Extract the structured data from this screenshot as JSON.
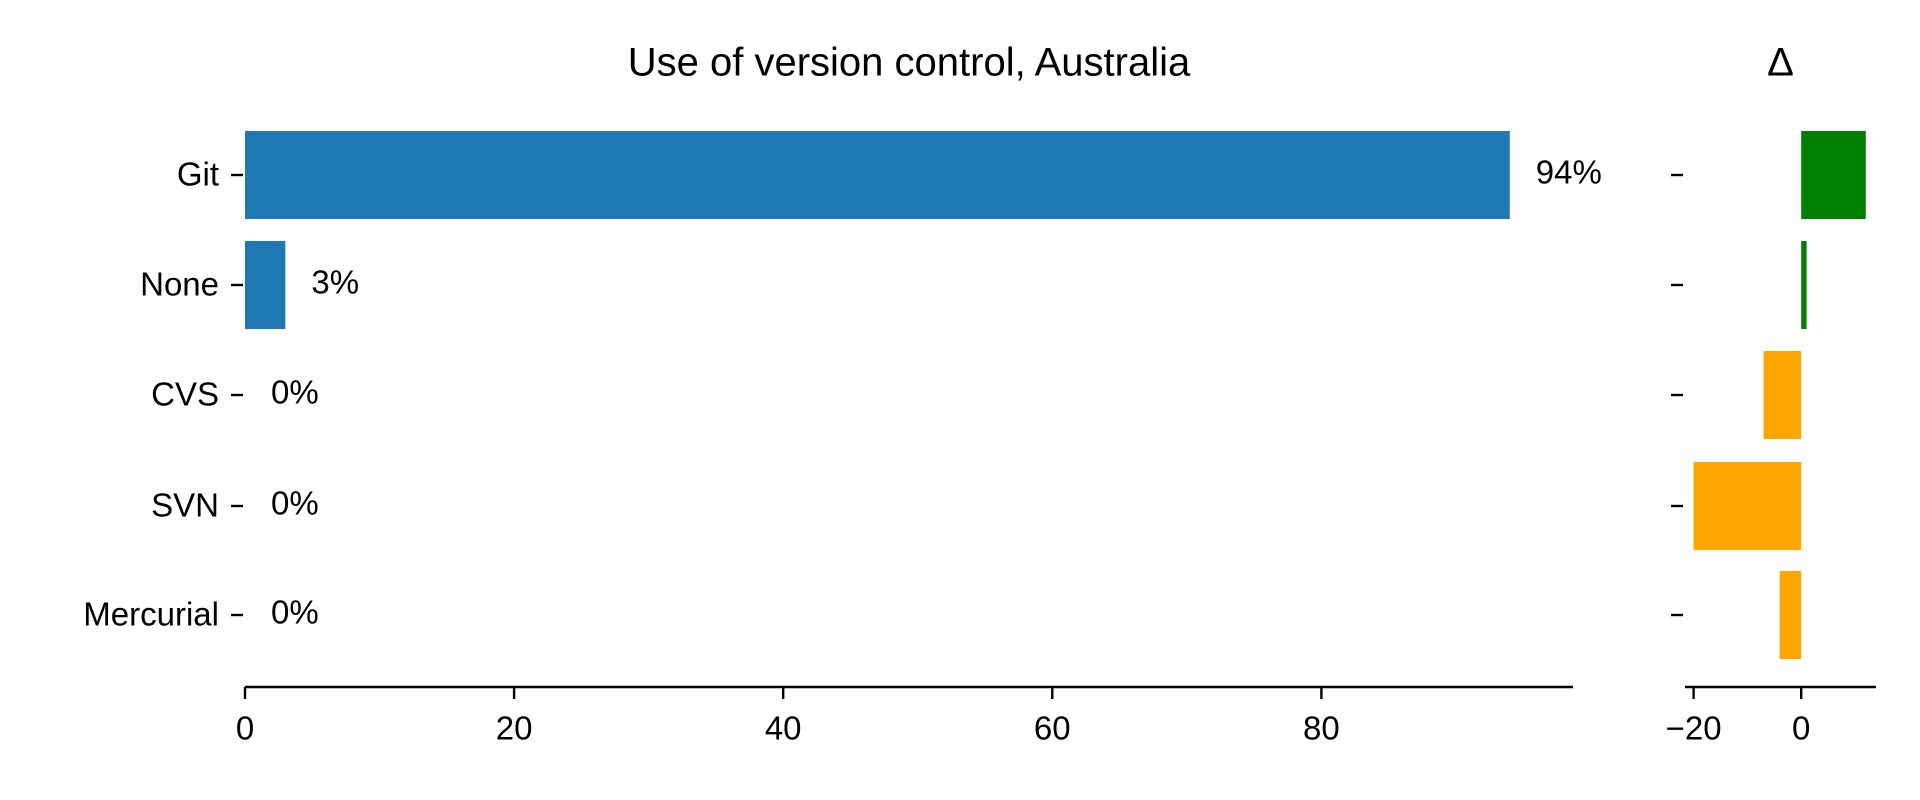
{
  "chart_data": [
    {
      "type": "barh",
      "title": "Use of version control, Australia",
      "categories": [
        "Git",
        "None",
        "CVS",
        "SVN",
        "Mercurial"
      ],
      "values": [
        94,
        3,
        0,
        0,
        0
      ],
      "value_labels": [
        "94%",
        "3%",
        "0%",
        "0%",
        "0%"
      ],
      "color": "#1f77b4",
      "xlim": [
        0,
        98.7
      ],
      "xticks": [
        0,
        20,
        40,
        60,
        80
      ]
    },
    {
      "type": "barh",
      "title": "Δ",
      "values": [
        12,
        1,
        -7,
        -20,
        -4
      ],
      "colors": [
        "#008000",
        "#008000",
        "#ffa500",
        "#ffa500",
        "#ffa500"
      ],
      "xlim": [
        -21.6,
        13.9
      ],
      "xticks": [
        {
          "value": -20,
          "label": "−20"
        },
        0
      ]
    }
  ]
}
